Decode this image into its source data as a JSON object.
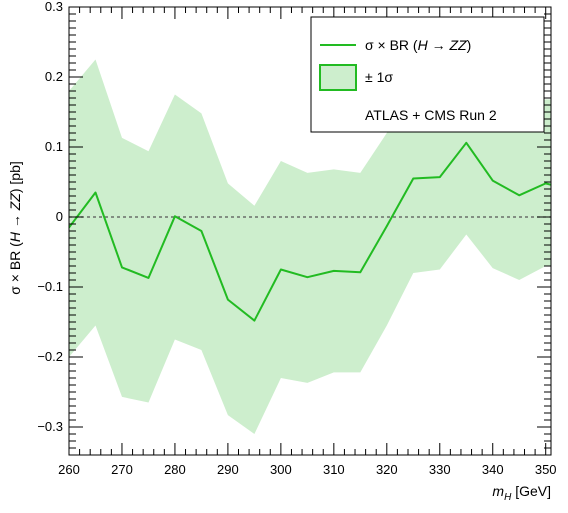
{
  "chart_data": {
    "type": "line",
    "title": "",
    "xlabel": "m_H [GeV]",
    "xlabel_main": "m",
    "xlabel_sub": "H",
    "xlabel_unit": " [GeV]",
    "ylabel": "σ × BR (H → ZZ) [pb]",
    "ylabel_pre": "σ × BR (",
    "ylabel_italic": "H → ZZ",
    "ylabel_post": ") [pb]",
    "xlim": [
      260,
      351
    ],
    "ylim": [
      -0.34,
      0.3
    ],
    "xticks": [
      260,
      270,
      280,
      290,
      300,
      310,
      320,
      330,
      340,
      350
    ],
    "yticks": [
      -0.3,
      -0.2,
      -0.1,
      0,
      0.1,
      0.2,
      0.3
    ],
    "ytick_labels": [
      "−0.3",
      "−0.2",
      "−0.1",
      "0",
      "0.1",
      "0.2",
      "0.3"
    ],
    "grid": false,
    "reference_line": 0,
    "legend_position": "top-right",
    "annotation": "ATLAS + CMS Run 2",
    "colors": {
      "line": "#22bb22",
      "band": "#cdeecd",
      "band_edge": "#22bb22",
      "reference": "#555555"
    },
    "x": [
      260,
      265,
      270,
      275,
      280,
      285,
      290,
      295,
      300,
      305,
      310,
      315,
      320,
      325,
      330,
      335,
      340,
      345,
      350,
      351
    ],
    "series": [
      {
        "name": "σ × BR (H → ZZ)",
        "name_pre": "σ × BR (",
        "name_italic": "H → ZZ",
        "name_post": ")",
        "values": [
          -0.015,
          0.035,
          -0.072,
          -0.087,
          0.001,
          -0.02,
          -0.118,
          -0.148,
          -0.075,
          -0.086,
          -0.077,
          -0.079,
          -0.013,
          0.055,
          0.057,
          0.106,
          0.052,
          0.031,
          0.048,
          0.046
        ]
      }
    ],
    "band": {
      "name": "± 1σ",
      "upper": [
        0.18,
        0.225,
        0.113,
        0.094,
        0.175,
        0.148,
        0.048,
        0.016,
        0.08,
        0.063,
        0.068,
        0.063,
        0.12,
        0.188,
        0.197,
        0.235,
        0.176,
        0.155,
        0.168,
        0.168
      ],
      "lower": [
        -0.2,
        -0.155,
        -0.257,
        -0.265,
        -0.175,
        -0.19,
        -0.283,
        -0.31,
        -0.23,
        -0.237,
        -0.222,
        -0.222,
        -0.155,
        -0.08,
        -0.075,
        -0.025,
        -0.073,
        -0.09,
        -0.07,
        -0.07
      ]
    }
  }
}
